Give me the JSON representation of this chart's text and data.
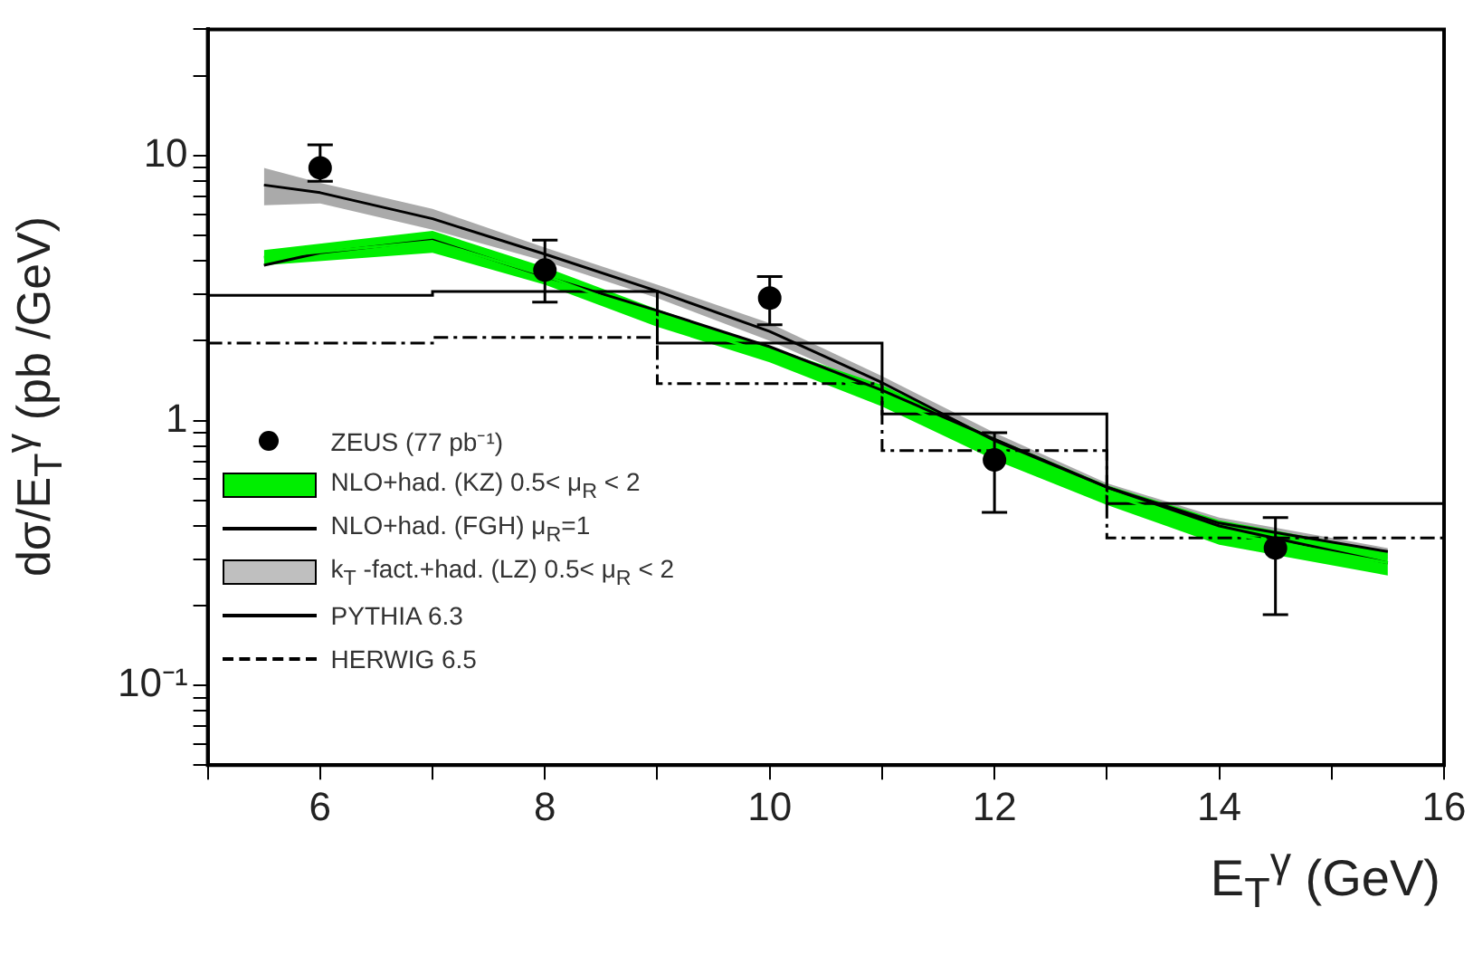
{
  "chart_data": {
    "type": "line",
    "xlabel": "E$_{T}$$^{γ}$ (GeV)",
    "ylabel": "dσ/E$_{T}$$^{γ}$ (pb /GeV)",
    "log": "y",
    "grid": false,
    "legend": "bottom left",
    "xlim": [
      5,
      16
    ],
    "ylim": [
      0.05,
      30
    ],
    "xticks": [
      {
        "value": 5,
        "label": null
      },
      6,
      {
        "value": 7,
        "label": null
      },
      8,
      {
        "value": 9,
        "label": null
      },
      10,
      {
        "value": 11,
        "label": null
      },
      12,
      {
        "value": 13,
        "label": null
      },
      14,
      {
        "value": 15,
        "label": null
      },
      16
    ],
    "yticks": [
      {
        "value": 0.05,
        "label": null
      },
      {
        "value": 0.06,
        "label": null
      },
      {
        "value": 0.07,
        "label": null
      },
      {
        "value": 0.08,
        "label": null
      },
      {
        "value": 0.09,
        "label": null
      },
      {
        "value": 0.1,
        "label": "10⁻¹"
      },
      {
        "value": 0.2,
        "label": null
      },
      {
        "value": 0.3,
        "label": null
      },
      {
        "value": 0.4,
        "label": null
      },
      {
        "value": 0.5,
        "label": null
      },
      {
        "value": 0.6,
        "label": null
      },
      {
        "value": 0.7,
        "label": null
      },
      {
        "value": 0.8,
        "label": null
      },
      {
        "value": 0.9,
        "label": null
      },
      1,
      {
        "value": 2,
        "label": null
      },
      {
        "value": 3,
        "label": null
      },
      {
        "value": 4,
        "label": null
      },
      {
        "value": 5,
        "label": null
      },
      {
        "value": 6,
        "label": null
      },
      {
        "value": 7,
        "label": null
      },
      {
        "value": 8,
        "label": null
      },
      {
        "value": 9,
        "label": null
      },
      10,
      {
        "value": 20,
        "label": null
      },
      {
        "value": 30,
        "label": null
      }
    ],
    "series": [
      {
        "type": "scatter",
        "name": "ZEUS (77 pb⁻¹)",
        "color": "#000000",
        "marker": "circle",
        "x": [
          6,
          8,
          10,
          12,
          14.5
        ],
        "values": [
          9.0,
          3.7,
          2.9,
          0.71,
          0.33
        ],
        "errors": [
          [
            8.0,
            11
          ],
          [
            2.8,
            4.8
          ],
          [
            2.3,
            3.5
          ],
          [
            0.45,
            0.9
          ],
          [
            0.185,
            0.43
          ]
        ]
      },
      {
        "name": "NLO+had. (KZ) 0.5< μ$_{R}$ < 2",
        "color": "#00ee00",
        "x": [
          5.5,
          7,
          8,
          9,
          10,
          11,
          12,
          13,
          14,
          15.5
        ],
        "values": [
          4.13,
          4.75,
          3.53,
          2.45,
          1.78,
          1.25,
          0.79,
          0.53,
          0.38,
          0.29
        ],
        "lower": [
          3.86,
          4.3,
          3.26,
          2.26,
          1.66,
          1.13,
          0.71,
          0.48,
          0.34,
          0.26
        ],
        "upper": [
          4.4,
          5.2,
          3.8,
          2.63,
          1.9,
          1.36,
          0.86,
          0.57,
          0.42,
          0.32
        ]
      },
      {
        "type": "line",
        "name": "NLO+had. (FGH)  μ$_{R}$=1",
        "color": "#000000",
        "line_style": "solid",
        "x": [
          5.5,
          6,
          7,
          8,
          9,
          10,
          11,
          12,
          13,
          14,
          15.5
        ],
        "values": [
          3.86,
          4.3,
          4.8,
          3.5,
          2.6,
          1.9,
          1.3,
          0.85,
          0.56,
          0.4,
          0.29
        ]
      },
      {
        "name": "k$_{T}$ -fact.+had. (LZ)  0.5< μ$_{R}$ < 2",
        "color": "#000000",
        "line_style": "solid",
        "x": [
          5.5,
          6,
          7,
          8,
          9,
          10,
          11,
          12,
          13,
          14,
          15.5
        ],
        "values": [
          7.75,
          7.25,
          5.78,
          4.25,
          3.08,
          2.17,
          1.39,
          0.84,
          0.56,
          0.41,
          0.32
        ],
        "lower": [
          6.5,
          6.6,
          5.25,
          4.0,
          2.9,
          2.0,
          1.3,
          0.77,
          0.53,
          0.39,
          0.3
        ],
        "upper": [
          9.0,
          7.9,
          6.3,
          4.5,
          3.26,
          2.33,
          1.47,
          0.9,
          0.58,
          0.43,
          0.33
        ]
      },
      {
        "type": "step",
        "name": "PYTHIA 6.3",
        "color": "#000000",
        "line_style": "solid",
        "x": [
          5,
          7,
          9,
          11,
          13,
          16
        ],
        "values": [
          2.97,
          3.07,
          1.96,
          1.06,
          0.486,
          0.486
        ]
      },
      {
        "type": "step",
        "name": "HERWIG 6.5",
        "color": "#000000",
        "line_style": "dashed",
        "x": [
          5,
          7,
          9,
          11,
          13,
          16
        ],
        "values": [
          1.96,
          2.06,
          1.38,
          0.77,
          0.36,
          0.36
        ]
      }
    ]
  }
}
